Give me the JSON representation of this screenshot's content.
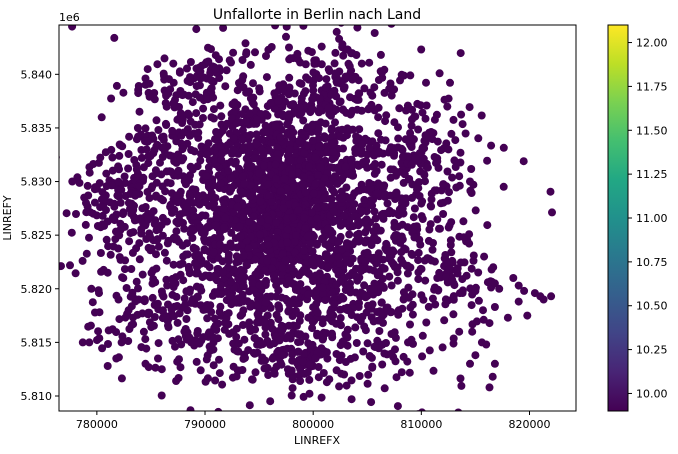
{
  "chart_data": {
    "type": "scatter",
    "title": "Unfallorte in Berlin nach Land",
    "xlabel": "LINREFX",
    "ylabel": "LINREFY",
    "y_offset_label": "1e6",
    "xlim": [
      776500,
      824300
    ],
    "ylim": [
      5.8086,
      5.8446
    ],
    "x_ticks": [
      780000,
      790000,
      800000,
      810000,
      820000
    ],
    "x_tick_labels": [
      "780000",
      "790000",
      "800000",
      "810000",
      "820000"
    ],
    "y_ticks": [
      5.81,
      5.815,
      5.82,
      5.825,
      5.83,
      5.835,
      5.84
    ],
    "y_tick_labels": [
      "5.810",
      "5.815",
      "5.820",
      "5.825",
      "5.830",
      "5.835",
      "5.840"
    ],
    "grid": false,
    "marker_color": "#440154",
    "colorbar": {
      "colormap": "viridis",
      "range": [
        9.9,
        12.1
      ],
      "ticks": [
        10.0,
        10.25,
        10.5,
        10.75,
        11.0,
        11.25,
        11.5,
        11.75,
        12.0
      ],
      "tick_labels": [
        "10.00",
        "10.25",
        "10.50",
        "10.75",
        "11.00",
        "11.25",
        "11.50",
        "11.75",
        "12.00"
      ]
    },
    "point_clusters": [
      {
        "x": 797500,
        "y": 5.8283,
        "sx": 3300,
        "sy": 0.0048,
        "n": 1000
      },
      {
        "x": 797000,
        "y": 5.8265,
        "sx": 7000,
        "sy": 0.0075,
        "n": 900
      },
      {
        "x": 789500,
        "y": 5.8285,
        "sx": 5000,
        "sy": 0.005,
        "n": 280
      },
      {
        "x": 807000,
        "y": 5.827,
        "sx": 4500,
        "sy": 0.0055,
        "n": 260
      },
      {
        "x": 803000,
        "y": 5.8175,
        "sx": 4500,
        "sy": 0.004,
        "n": 220
      },
      {
        "x": 790000,
        "y": 5.819,
        "sx": 4500,
        "sy": 0.0035,
        "n": 200
      },
      {
        "x": 784000,
        "y": 5.8285,
        "sx": 2500,
        "sy": 0.0022,
        "n": 120
      },
      {
        "x": 809500,
        "y": 5.833,
        "sx": 2600,
        "sy": 0.003,
        "n": 100
      },
      {
        "x": 787500,
        "y": 5.837,
        "sx": 1700,
        "sy": 0.0022,
        "n": 60
      },
      {
        "x": 801500,
        "y": 5.8395,
        "sx": 1800,
        "sy": 0.0022,
        "n": 70
      },
      {
        "x": 790500,
        "y": 5.8395,
        "sx": 900,
        "sy": 0.0015,
        "n": 25
      },
      {
        "x": 811500,
        "y": 5.8225,
        "sx": 1800,
        "sy": 0.0018,
        "n": 40
      },
      {
        "x": 783500,
        "y": 5.817,
        "sx": 1800,
        "sy": 0.0018,
        "n": 30
      },
      {
        "x": 795500,
        "y": 5.8135,
        "sx": 1800,
        "sy": 0.0012,
        "n": 30
      },
      {
        "x": 799300,
        "y": 5.814,
        "sx": 900,
        "sy": 0.0012,
        "n": 35
      },
      {
        "x": 780500,
        "y": 5.8255,
        "sx": 900,
        "sy": 0.0022,
        "n": 20
      },
      {
        "x": 813500,
        "y": 5.8205,
        "sx": 1500,
        "sy": 0.0012,
        "n": 20
      }
    ],
    "outlier_points": [
      [
        778700,
        5.815
      ],
      [
        779300,
        5.815
      ],
      [
        781000,
        5.8128
      ],
      [
        781800,
        5.8135
      ],
      [
        779200,
        5.8287
      ],
      [
        779000,
        5.828
      ],
      [
        779500,
        5.82
      ],
      [
        780200,
        5.8196
      ],
      [
        781000,
        5.8215
      ],
      [
        782000,
        5.819
      ],
      [
        786600,
        5.8382
      ],
      [
        786400,
        5.838
      ],
      [
        784600,
        5.833
      ],
      [
        788500,
        5.838
      ],
      [
        789700,
        5.8408
      ],
      [
        790300,
        5.8412
      ],
      [
        791000,
        5.8405
      ],
      [
        797900,
        5.8415
      ],
      [
        800300,
        5.841
      ],
      [
        802700,
        5.8428
      ],
      [
        803200,
        5.8423
      ],
      [
        804000,
        5.8418
      ],
      [
        804500,
        5.841
      ],
      [
        805300,
        5.8383
      ],
      [
        806000,
        5.836
      ],
      [
        812500,
        5.833
      ],
      [
        813500,
        5.8305
      ],
      [
        814500,
        5.83
      ],
      [
        815800,
        5.823
      ],
      [
        816500,
        5.8218
      ],
      [
        816800,
        5.8205
      ],
      [
        817200,
        5.82
      ],
      [
        818500,
        5.821
      ],
      [
        819000,
        5.8203
      ],
      [
        819500,
        5.8198
      ],
      [
        820500,
        5.8196
      ],
      [
        821000,
        5.8193
      ],
      [
        822000,
        5.8193
      ],
      [
        821300,
        5.819
      ],
      [
        819000,
        5.8188
      ],
      [
        819800,
        5.8175
      ],
      [
        818000,
        5.8173
      ],
      [
        816800,
        5.8183
      ],
      [
        815700,
        5.818
      ],
      [
        816300,
        5.8168
      ],
      [
        814700,
        5.816
      ],
      [
        815600,
        5.815
      ],
      [
        816000,
        5.8148
      ],
      [
        816800,
        5.813
      ],
      [
        813500,
        5.816
      ],
      [
        816300,
        5.8108
      ],
      [
        816600,
        5.8118
      ],
      [
        815000,
        5.8138
      ],
      [
        814500,
        5.813
      ],
      [
        800500,
        5.8127
      ],
      [
        799500,
        5.8122
      ],
      [
        798800,
        5.8125
      ],
      [
        800200,
        5.8135
      ],
      [
        784500,
        5.813
      ],
      [
        786000,
        5.8125
      ]
    ]
  }
}
